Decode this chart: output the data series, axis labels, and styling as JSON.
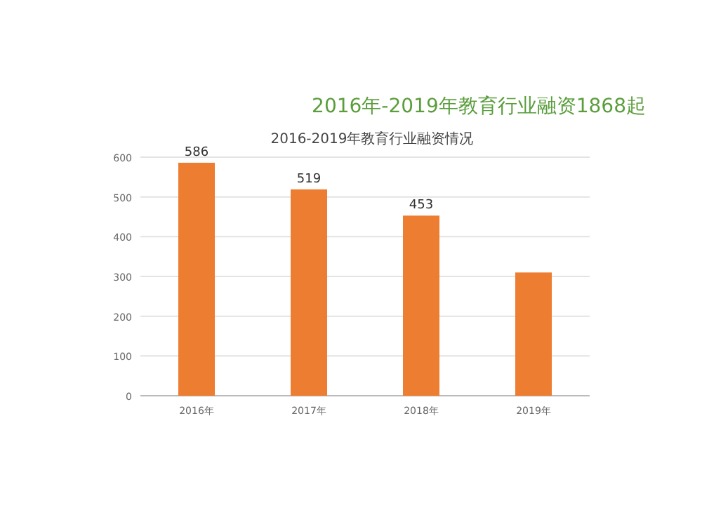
{
  "chart_data": {
    "type": "bar",
    "title": "2016年-2019年教育行业融资1868起",
    "subtitle": "2016-2019年教育行业融资情况",
    "categories": [
      "2016年",
      "2017年",
      "2018年",
      "2019年"
    ],
    "values": [
      586,
      519,
      453,
      310
    ],
    "value_labels": [
      "586",
      "519",
      "453",
      null
    ],
    "color": "#ed7d31",
    "ylim": [
      0,
      600
    ],
    "yticks": [
      0,
      100,
      200,
      300,
      400,
      500,
      600
    ],
    "grid": "y"
  }
}
